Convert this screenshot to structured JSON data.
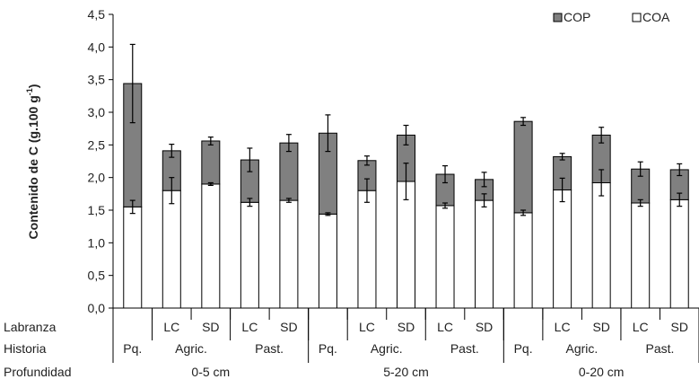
{
  "chart_data": {
    "type": "bar",
    "stacked": true,
    "ylabel": "Contenido de C (g.100 g",
    "ylabel_superscript": "-1",
    "ylabel_close": ")",
    "ylim": [
      0,
      4.5
    ],
    "yticks": [
      "0,0",
      "0,5",
      "1,0",
      "1,5",
      "2,0",
      "2,5",
      "3,0",
      "3,5",
      "4,0",
      "4,5"
    ],
    "legend": {
      "placement": "top-right"
    },
    "series": [
      {
        "name": "COA",
        "color": "#ffffff",
        "values": [
          1.55,
          1.8,
          1.9,
          1.62,
          1.65,
          1.44,
          1.8,
          1.94,
          1.57,
          1.65,
          1.46,
          1.81,
          1.92,
          1.61,
          1.66
        ],
        "errors": [
          0.1,
          0.2,
          0.02,
          0.06,
          0.03,
          0.02,
          0.18,
          0.28,
          0.04,
          0.1,
          0.04,
          0.18,
          0.2,
          0.05,
          0.1
        ]
      },
      {
        "name": "COP",
        "color": "#808080",
        "values": [
          1.89,
          0.61,
          0.66,
          0.65,
          0.88,
          1.24,
          0.46,
          0.71,
          0.48,
          0.32,
          1.4,
          0.51,
          0.73,
          0.52,
          0.46
        ],
        "errors": [
          0.6,
          0.1,
          0.06,
          0.18,
          0.13,
          0.28,
          0.07,
          0.15,
          0.13,
          0.11,
          0.06,
          0.05,
          0.12,
          0.11,
          0.09
        ]
      }
    ],
    "category_rows": [
      {
        "label": "Labranza",
        "cells": [
          "",
          "LC",
          "SD",
          "LC",
          "SD",
          "",
          "LC",
          "SD",
          "LC",
          "SD",
          "",
          "LC",
          "SD",
          "LC",
          "SD"
        ]
      },
      {
        "label": "Historia",
        "groups": [
          {
            "text": "Pq.",
            "span": 1
          },
          {
            "text": "Agric.",
            "span": 2
          },
          {
            "text": "Past.",
            "span": 2
          },
          {
            "text": "Pq.",
            "span": 1
          },
          {
            "text": "Agric.",
            "span": 2
          },
          {
            "text": "Past.",
            "span": 2
          },
          {
            "text": "Pq.",
            "span": 1
          },
          {
            "text": "Agric.",
            "span": 2
          },
          {
            "text": "Past.",
            "span": 2
          }
        ]
      },
      {
        "label": "Profundidad",
        "groups": [
          {
            "text": "0-5 cm",
            "span": 5
          },
          {
            "text": "5-20 cm",
            "span": 5
          },
          {
            "text": "0-20 cm",
            "span": 5
          }
        ]
      }
    ]
  }
}
